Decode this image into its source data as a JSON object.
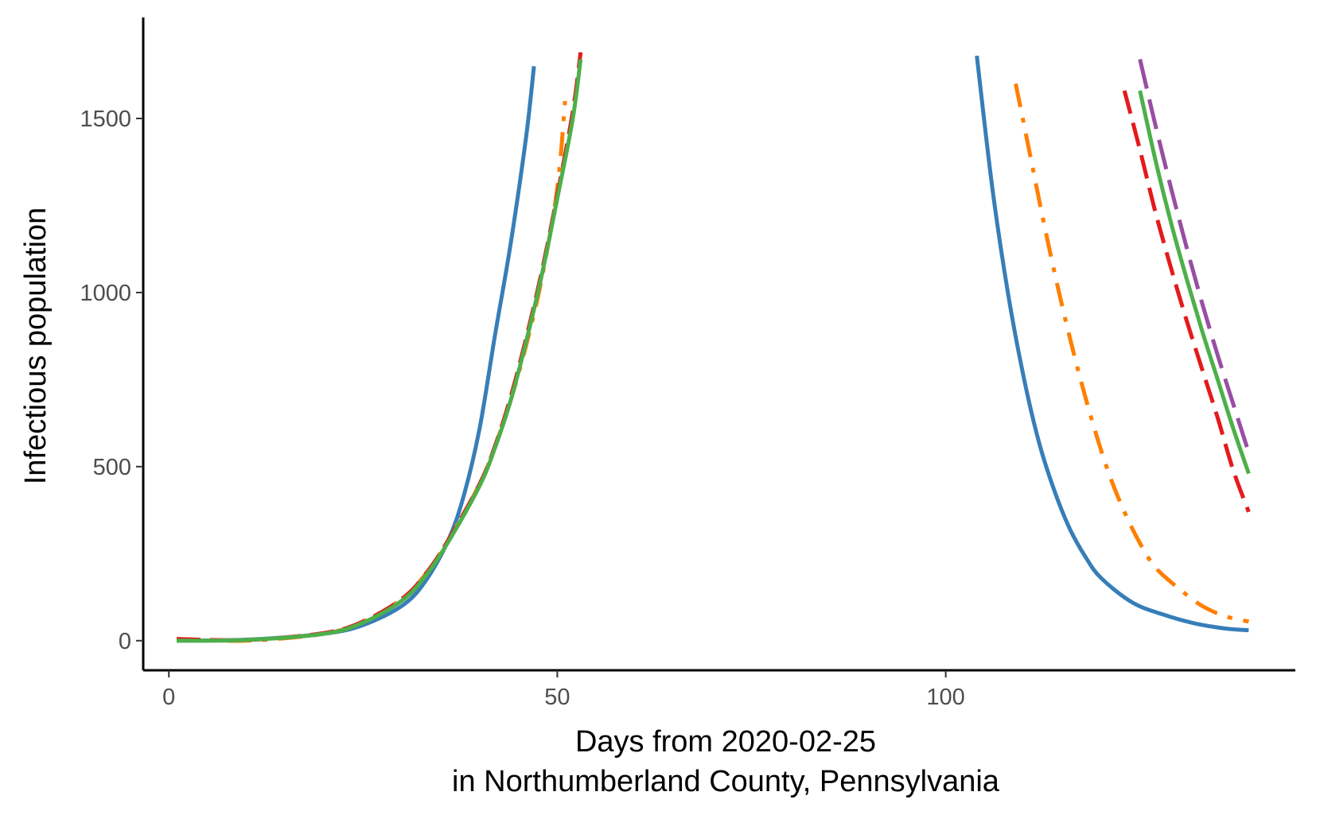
{
  "chart_data": {
    "type": "line",
    "title": "",
    "xlabel_line1": "Days from 2020-02-25",
    "xlabel_line2": "in Northumberland County, Pennsylvania",
    "ylabel": "Infectious population",
    "xlim": [
      -3.3,
      145
    ],
    "ylim": [
      -85,
      1790
    ],
    "x_ticks": [
      0,
      50,
      100
    ],
    "x_tick_labels": [
      "0",
      "50",
      "100"
    ],
    "y_ticks": [
      0,
      500,
      1000,
      1500
    ],
    "y_tick_labels": [
      "0",
      "500",
      "1000",
      "1500"
    ],
    "grid": false,
    "series": [
      {
        "name": "blue-solid",
        "color": "#377eb8",
        "dash": "solid",
        "segments": [
          {
            "x": [
              1,
              10,
              20,
              25,
              30,
              33,
              36,
              38,
              40,
              42,
              44,
              46,
              47
            ],
            "y": [
              0,
              3,
              20,
              45,
              100,
              170,
              290,
              420,
              610,
              880,
              1140,
              1450,
              1650
            ]
          },
          {
            "x": [
              104,
              106,
              108,
              110,
              112,
              114,
              116,
              118,
              120,
              124,
              128,
              132,
              136,
              139
            ],
            "y": [
              1680,
              1300,
              1000,
              760,
              570,
              430,
              320,
              240,
              180,
              110,
              75,
              50,
              35,
              30
            ]
          }
        ]
      },
      {
        "name": "orange-dashdot",
        "color": "#ff7f00",
        "dash": "dashdot",
        "segments": [
          {
            "x": [
              1,
              10,
              20,
              25,
              30,
              33,
              36,
              40,
              42,
              44,
              46,
              48,
              50,
              51
            ],
            "y": [
              5,
              0,
              20,
              55,
              120,
              190,
              290,
              450,
              560,
              690,
              850,
              1040,
              1300,
              1550
            ]
          },
          {
            "x": [
              109,
              111,
              113,
              115,
              117,
              119,
              121,
              123,
              125,
              127,
              130,
              133,
              136,
              139
            ],
            "y": [
              1600,
              1380,
              1160,
              960,
              780,
              620,
              480,
              370,
              280,
              210,
              150,
              100,
              70,
              55
            ]
          }
        ]
      },
      {
        "name": "red-dashed",
        "color": "#e41a1c",
        "dash": "dashed",
        "segments": [
          {
            "x": [
              1,
              10,
              20,
              25,
              30,
              33,
              36,
              40,
              42,
              44,
              46,
              48,
              50,
              52,
              53
            ],
            "y": [
              5,
              2,
              22,
              55,
              120,
              190,
              290,
              450,
              560,
              700,
              870,
              1060,
              1280,
              1520,
              1690
            ]
          },
          {
            "x": [
              123,
              125,
              127,
              129,
              131,
              133,
              135,
              137,
              139
            ],
            "y": [
              1580,
              1410,
              1230,
              1070,
              920,
              780,
              640,
              490,
              370
            ]
          }
        ]
      },
      {
        "name": "purple-dashed",
        "color": "#984ea3",
        "dash": "longdash",
        "segments": [
          {
            "x": [
              125,
              127,
              129,
              131,
              133,
              135,
              137,
              139
            ],
            "y": [
              1670,
              1480,
              1300,
              1130,
              970,
              820,
              680,
              540
            ]
          }
        ]
      },
      {
        "name": "green-solid",
        "color": "#4daf4a",
        "dash": "solid",
        "segments": [
          {
            "x": [
              1,
              10,
              20,
              25,
              30,
              33,
              36,
              40,
              42,
              44,
              46,
              48,
              50,
              52,
              53
            ],
            "y": [
              0,
              2,
              20,
              52,
              115,
              185,
              285,
              445,
              555,
              690,
              860,
              1050,
              1270,
              1500,
              1670
            ]
          },
          {
            "x": [
              125,
              127,
              129,
              131,
              133,
              135,
              137,
              139
            ],
            "y": [
              1580,
              1380,
              1200,
              1040,
              890,
              750,
              610,
              480
            ]
          }
        ]
      }
    ]
  }
}
